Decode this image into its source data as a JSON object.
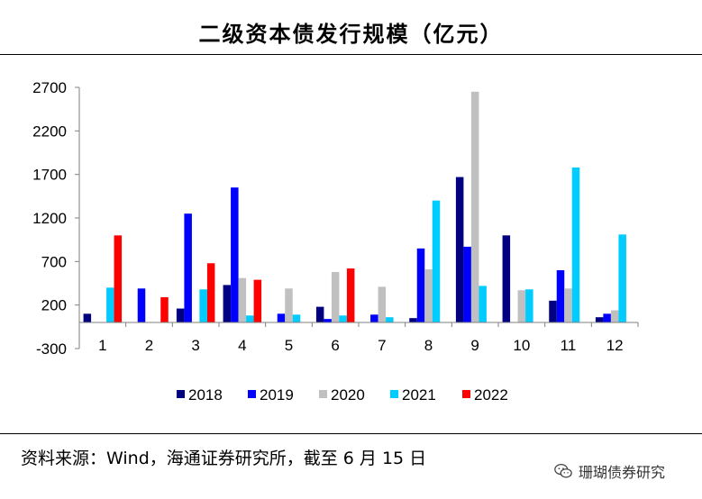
{
  "header": {
    "title": "二级资本债发行规模（亿元）"
  },
  "footer": {
    "source": "资料来源：Wind，海通证券研究所，截至 6 月 15 日",
    "watermark_text": "珊瑚债券研究",
    "watermark_icon": "wechat-icon"
  },
  "chart_data": {
    "type": "bar",
    "title": "二级资本债发行规模（亿元）",
    "xlabel": "",
    "ylabel": "",
    "categories": [
      "1",
      "2",
      "3",
      "4",
      "5",
      "6",
      "7",
      "8",
      "9",
      "10",
      "11",
      "12"
    ],
    "ylim": [
      -300,
      2700
    ],
    "yticks": [
      -300,
      200,
      700,
      1200,
      1700,
      2200,
      2700
    ],
    "ytick_labels": [
      "-300",
      "200",
      "700",
      "1200",
      "1700",
      "2200",
      "2700"
    ],
    "grid": false,
    "legend_position": "bottom",
    "series": [
      {
        "name": "2018",
        "color": "#000080",
        "values": [
          100,
          0,
          160,
          430,
          0,
          180,
          0,
          50,
          1670,
          1000,
          250,
          60
        ]
      },
      {
        "name": "2019",
        "color": "#0000FF",
        "values": [
          0,
          390,
          1250,
          1550,
          100,
          40,
          90,
          850,
          870,
          0,
          600,
          100
        ]
      },
      {
        "name": "2020",
        "color": "#C0C0C0",
        "values": [
          0,
          0,
          0,
          510,
          390,
          580,
          410,
          610,
          2650,
          370,
          390,
          140
        ]
      },
      {
        "name": "2021",
        "color": "#00CCFF",
        "values": [
          400,
          0,
          380,
          80,
          90,
          80,
          60,
          1400,
          420,
          380,
          1780,
          1010
        ]
      },
      {
        "name": "2022",
        "color": "#FF0000",
        "values": [
          1000,
          290,
          680,
          490,
          0,
          620,
          0,
          0,
          0,
          0,
          0,
          0
        ]
      }
    ]
  }
}
